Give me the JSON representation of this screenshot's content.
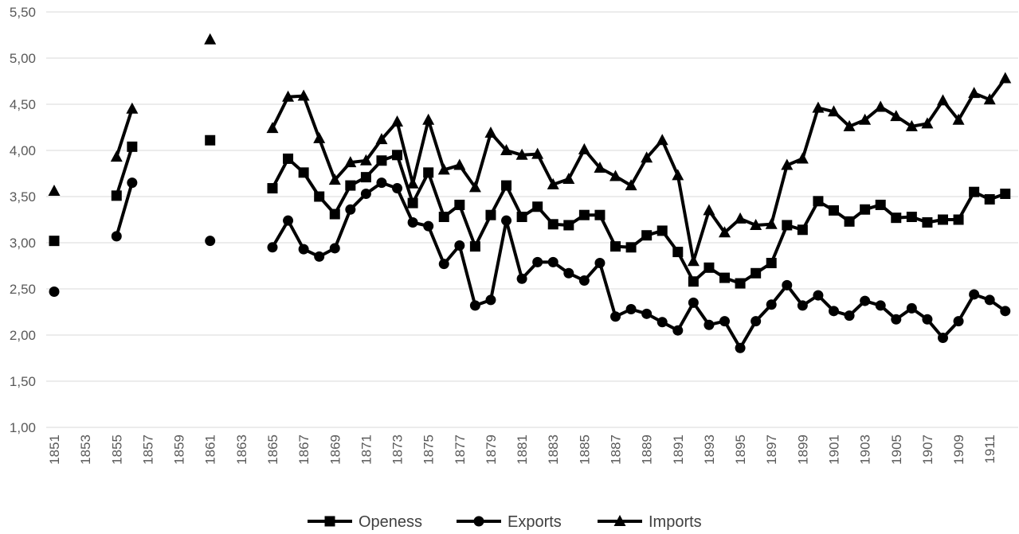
{
  "chart_data": {
    "type": "line",
    "title": "",
    "xlabel": "",
    "ylabel": "",
    "ylim": [
      1.0,
      5.5
    ],
    "y_ticks": [
      "1,00",
      "1,50",
      "2,00",
      "2,50",
      "3,00",
      "3,50",
      "4,00",
      "4,50",
      "5,00",
      "5,50"
    ],
    "y_tick_values": [
      1.0,
      1.5,
      2.0,
      2.5,
      3.0,
      3.5,
      4.0,
      4.5,
      5.0,
      5.5
    ],
    "x_tick_labels": [
      "1851",
      "1853",
      "1855",
      "1857",
      "1859",
      "1861",
      "1863",
      "1865",
      "1867",
      "1869",
      "1871",
      "1873",
      "1875",
      "1877",
      "1879",
      "1881",
      "1883",
      "1885",
      "1887",
      "1889",
      "1891",
      "1893",
      "1895",
      "1897",
      "1899",
      "1901",
      "1903",
      "1905",
      "1907",
      "1909",
      "1911"
    ],
    "x": [
      1851,
      1852,
      1853,
      1854,
      1855,
      1856,
      1857,
      1858,
      1859,
      1860,
      1861,
      1862,
      1863,
      1864,
      1865,
      1866,
      1867,
      1868,
      1869,
      1870,
      1871,
      1872,
      1873,
      1874,
      1875,
      1876,
      1877,
      1878,
      1879,
      1880,
      1881,
      1882,
      1883,
      1884,
      1885,
      1886,
      1887,
      1888,
      1889,
      1890,
      1891,
      1892,
      1893,
      1894,
      1895,
      1896,
      1897,
      1898,
      1899,
      1900,
      1901,
      1902,
      1903,
      1904,
      1905,
      1906,
      1907,
      1908,
      1909,
      1910,
      1911,
      1912
    ],
    "grid": "horizontal",
    "legend_position": "bottom",
    "series": [
      {
        "name": "Openess",
        "marker": "square",
        "values": [
          3.02,
          null,
          null,
          null,
          3.51,
          4.04,
          null,
          null,
          null,
          null,
          4.11,
          null,
          null,
          null,
          3.59,
          3.91,
          3.76,
          3.5,
          3.31,
          3.62,
          3.71,
          3.89,
          3.95,
          3.43,
          3.76,
          3.28,
          3.41,
          2.96,
          3.3,
          3.62,
          3.28,
          3.39,
          3.2,
          3.19,
          3.3,
          3.3,
          2.96,
          2.95,
          3.08,
          3.13,
          2.9,
          2.58,
          2.73,
          2.62,
          2.56,
          2.67,
          2.78,
          3.19,
          3.14,
          3.45,
          3.35,
          3.23,
          3.36,
          3.41,
          3.27,
          3.28,
          3.22,
          3.25,
          3.25,
          3.55,
          3.47,
          3.53
        ]
      },
      {
        "name": "Exports",
        "marker": "circle",
        "values": [
          2.47,
          null,
          null,
          null,
          3.07,
          3.65,
          null,
          null,
          null,
          null,
          3.02,
          null,
          null,
          null,
          2.95,
          3.24,
          2.93,
          2.85,
          2.94,
          3.36,
          3.53,
          3.65,
          3.59,
          3.22,
          3.18,
          2.77,
          2.97,
          2.32,
          2.38,
          3.24,
          2.61,
          2.79,
          2.79,
          2.67,
          2.59,
          2.78,
          2.2,
          2.28,
          2.23,
          2.14,
          2.05,
          2.35,
          2.11,
          2.15,
          1.86,
          2.15,
          2.33,
          2.54,
          2.32,
          2.43,
          2.26,
          2.21,
          2.37,
          2.32,
          2.17,
          2.29,
          2.17,
          1.97,
          2.15,
          2.44,
          2.38,
          2.26
        ]
      },
      {
        "name": "Imports",
        "marker": "triangle",
        "values": [
          3.56,
          null,
          null,
          null,
          3.93,
          4.45,
          null,
          null,
          null,
          null,
          5.2,
          null,
          null,
          null,
          4.24,
          4.58,
          4.59,
          4.13,
          3.68,
          3.87,
          3.89,
          4.12,
          4.31,
          3.64,
          4.33,
          3.79,
          3.84,
          3.6,
          4.19,
          4.0,
          3.95,
          3.96,
          3.63,
          3.69,
          4.01,
          3.81,
          3.72,
          3.62,
          3.92,
          4.11,
          3.73,
          2.8,
          3.35,
          3.11,
          3.26,
          3.19,
          3.2,
          3.84,
          3.91,
          4.46,
          4.42,
          4.26,
          4.33,
          4.47,
          4.37,
          4.26,
          4.29,
          4.54,
          4.33,
          4.62,
          4.55,
          4.78
        ]
      }
    ]
  }
}
